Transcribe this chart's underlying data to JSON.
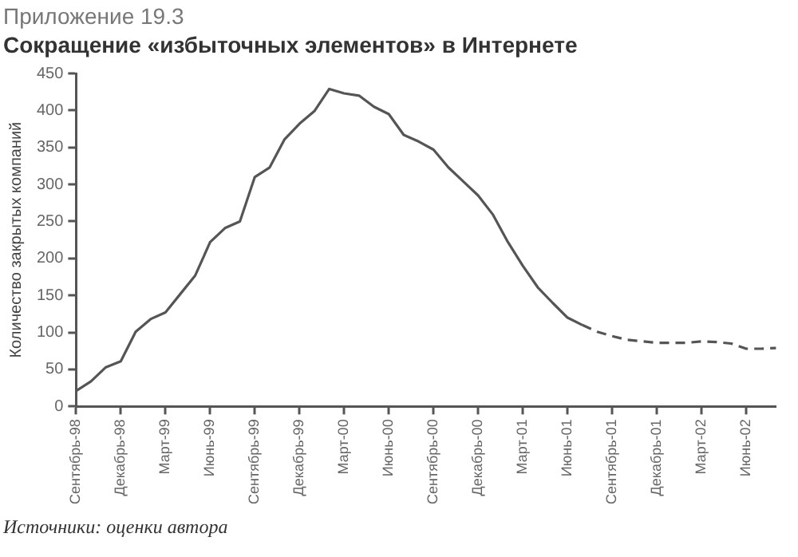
{
  "chart_data": {
    "type": "line",
    "title": "Сокращение «избыточных элементов» в Интернете",
    "subtitle": "Приложение 19.3",
    "ylabel": "Количество закрытых компаний",
    "categories": [
      "Сентябрь-98",
      null,
      null,
      "Декабрь-98",
      null,
      null,
      "Март-99",
      null,
      null,
      "Июнь-99",
      null,
      null,
      "Сентябрь-99",
      null,
      null,
      "Декабрь-99",
      null,
      null,
      "Март-00",
      null,
      null,
      "Июнь-00",
      null,
      null,
      "Сентябрь-00",
      null,
      null,
      "Декабрь-00",
      null,
      null,
      "Март-01",
      null,
      null,
      "Июнь-01",
      null,
      null,
      "Сентябрь-01",
      null,
      null,
      "Декабрь-01",
      null,
      null,
      "Март-02",
      null,
      null,
      "Июнь-02",
      null,
      null
    ],
    "series": [
      {
        "color": "#555555",
        "line_style": "solid",
        "values": [
          21,
          34,
          53,
          61,
          101,
          118,
          127,
          152,
          177,
          222,
          241,
          250,
          310,
          323,
          361,
          382,
          399,
          429,
          423,
          420,
          405,
          395,
          367,
          358,
          347,
          323,
          304,
          285,
          259,
          222,
          190,
          161,
          140,
          120,
          110,
          null,
          null,
          null,
          null,
          null,
          null,
          null,
          null,
          null,
          null,
          null,
          null,
          null
        ]
      },
      {
        "color": "#555555",
        "line_style": "dashed",
        "values": [
          null,
          null,
          null,
          null,
          null,
          null,
          null,
          null,
          null,
          null,
          null,
          null,
          null,
          null,
          null,
          null,
          null,
          null,
          null,
          null,
          null,
          null,
          null,
          null,
          null,
          null,
          null,
          null,
          null,
          null,
          null,
          null,
          null,
          null,
          110,
          101,
          95,
          90,
          88,
          86,
          86,
          86,
          88,
          87,
          85,
          78,
          78,
          79
        ]
      }
    ],
    "ylim": [
      0,
      450
    ],
    "yticks": [
      0,
      50,
      100,
      150,
      200,
      250,
      300,
      350,
      400,
      450
    ],
    "grid": false,
    "legend": false,
    "marker": "none",
    "annotations": [
      "Источники: оценки автора"
    ]
  }
}
